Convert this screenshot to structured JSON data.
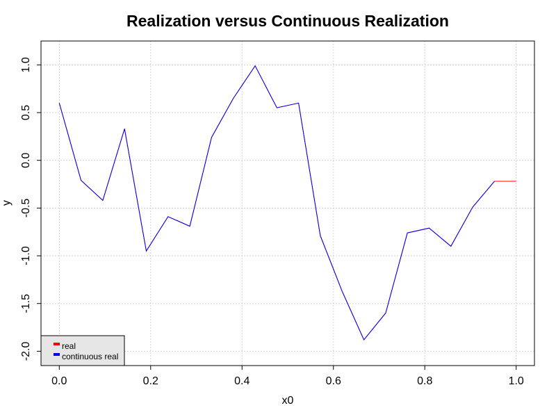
{
  "chart_data": {
    "type": "line",
    "title": "Realization versus Continuous Realization",
    "xlabel": "x0",
    "ylabel": "y",
    "xlim": [
      -0.04,
      1.04
    ],
    "ylim": [
      -2.15,
      1.25
    ],
    "xticks": [
      0.0,
      0.2,
      0.4,
      0.6,
      0.8,
      1.0
    ],
    "xtick_labels": [
      "0.0",
      "0.2",
      "0.4",
      "0.6",
      "0.8",
      "1.0"
    ],
    "yticks": [
      -2.0,
      -1.5,
      -1.0,
      -0.5,
      0.0,
      0.5,
      1.0
    ],
    "ytick_labels": [
      "-2.0",
      "-1.5",
      "-1.0",
      "-0.5",
      "0.0",
      "0.5",
      "1.0"
    ],
    "grid": true,
    "legend_position": "bottom-left",
    "series": [
      {
        "name": "real",
        "color": "#ff0000",
        "x": [
          0.0,
          0.0476,
          0.0952,
          0.1429,
          0.1905,
          0.2381,
          0.2857,
          0.3333,
          0.381,
          0.4286,
          0.4762,
          0.5238,
          0.5714,
          0.619,
          0.6667,
          0.7143,
          0.7619,
          0.8095,
          0.8571,
          0.9048,
          0.9524,
          1.0
        ],
        "y": [
          0.6,
          -0.21,
          -0.42,
          0.33,
          -0.95,
          -0.59,
          -0.69,
          0.24,
          0.65,
          0.99,
          0.55,
          0.6,
          -0.79,
          -1.37,
          -1.88,
          -1.6,
          -0.76,
          -0.71,
          -0.9,
          -0.49,
          -0.22,
          -0.22
        ]
      },
      {
        "name": "continuous real",
        "color": "#0000ff",
        "x": [
          0.0,
          0.0476,
          0.0952,
          0.1429,
          0.1905,
          0.2381,
          0.2857,
          0.3333,
          0.381,
          0.4286,
          0.4762,
          0.5238,
          0.5714,
          0.619,
          0.6667,
          0.7143,
          0.7619,
          0.8095,
          0.8571,
          0.9048,
          0.9524
        ],
        "y": [
          0.6,
          -0.21,
          -0.42,
          0.33,
          -0.95,
          -0.59,
          -0.69,
          0.24,
          0.65,
          0.99,
          0.55,
          0.6,
          -0.79,
          -1.37,
          -1.88,
          -1.6,
          -0.76,
          -0.71,
          -0.9,
          -0.49,
          -0.22
        ]
      }
    ]
  }
}
